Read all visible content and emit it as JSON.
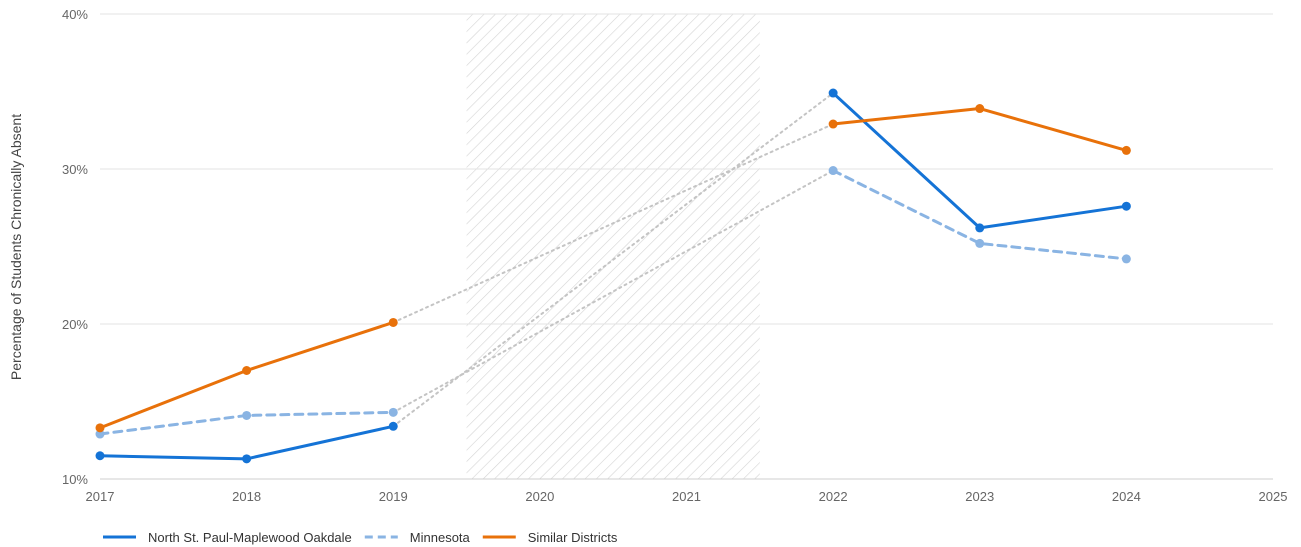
{
  "chart_data": {
    "type": "line",
    "title": "",
    "xlabel": "",
    "ylabel": "Percentage of Students Chronically Absent",
    "xlim": [
      2017,
      2025
    ],
    "ylim": [
      10,
      40
    ],
    "x_ticks": [
      "2017",
      "2018",
      "2019",
      "2020",
      "2021",
      "2022",
      "2023",
      "2024",
      "2025"
    ],
    "y_ticks": [
      "10%",
      "20%",
      "30%",
      "40%"
    ],
    "grid": "horizontal",
    "legend_position": "bottom-left",
    "shaded_region": {
      "x_start": 2019.5,
      "x_end": 2021.5,
      "pattern": "diagonal-hatch"
    },
    "gap_connectors": "dotted-gray",
    "series": [
      {
        "name": "North St. Paul-Maplewood Oakdale",
        "color": "#1473d6",
        "dash": "solid",
        "x": [
          2017,
          2018,
          2019,
          2022,
          2023,
          2024
        ],
        "values": [
          11.5,
          11.3,
          13.4,
          34.9,
          26.2,
          27.6
        ]
      },
      {
        "name": "Minnesota",
        "color": "#8ab4e3",
        "dash": "dashed",
        "x": [
          2017,
          2018,
          2019,
          2022,
          2023,
          2024
        ],
        "values": [
          12.9,
          14.1,
          14.3,
          29.9,
          25.2,
          24.2
        ]
      },
      {
        "name": "Similar Districts",
        "color": "#e8710a",
        "dash": "solid",
        "x": [
          2017,
          2018,
          2019,
          2022,
          2023,
          2024
        ],
        "values": [
          13.3,
          17.0,
          20.1,
          32.9,
          33.9,
          31.2
        ]
      }
    ]
  }
}
